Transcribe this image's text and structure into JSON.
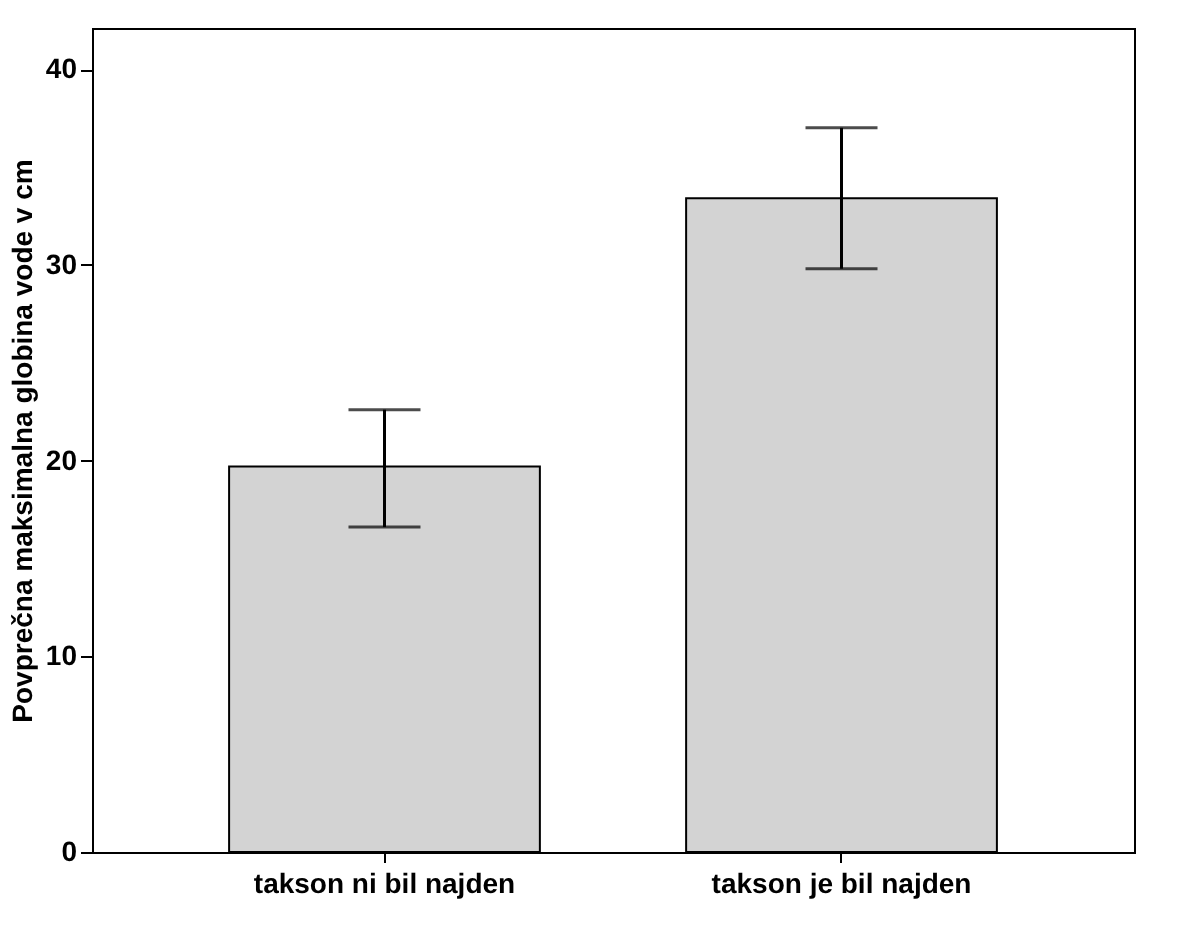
{
  "chart_data": {
    "type": "bar",
    "ylabel": "Povprečna maksimalna globina vode v cm",
    "categories": [
      "takson ni bil najden",
      "takson je bil najden"
    ],
    "values": [
      19.7,
      33.4
    ],
    "errors": [
      [
        16.6,
        22.6
      ],
      [
        29.8,
        37.0
      ]
    ],
    "color": "#d3d3d3",
    "ylim": [
      0,
      42.1
    ],
    "yticks": [
      0,
      10,
      20,
      30,
      40
    ],
    "grid": false
  }
}
